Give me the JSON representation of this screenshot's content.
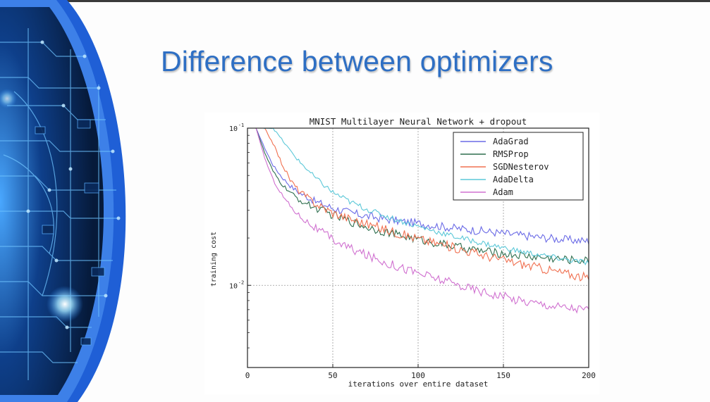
{
  "slide": {
    "title": "Difference between optimizers",
    "accent_color": "#2e6fc4",
    "decoration": "blue-circuit-globe"
  },
  "chart_data": {
    "type": "line",
    "title": "MNIST Multilayer Neural Network + dropout",
    "xlabel": "iterations over entire dataset",
    "ylabel": "training cost",
    "xlim": [
      0,
      200
    ],
    "ylim": [
      0.003,
      0.1
    ],
    "yscale": "log",
    "xticks": [
      "0",
      "50",
      "100",
      "150",
      "200"
    ],
    "yticks": [
      {
        "value": 0.1,
        "base": "10",
        "exp": "-1"
      },
      {
        "value": 0.01,
        "base": "10",
        "exp": "-2"
      }
    ],
    "grid": true,
    "legend_position": "top-right",
    "x": [
      5,
      10,
      15,
      20,
      25,
      30,
      40,
      50,
      60,
      70,
      80,
      90,
      100,
      110,
      120,
      130,
      140,
      150,
      160,
      170,
      180,
      190,
      200
    ],
    "series": [
      {
        "name": "AdaGrad",
        "color": "#6a6ae6",
        "noise": 0.9,
        "values": [
          0.1,
          0.075,
          0.058,
          0.049,
          0.043,
          0.039,
          0.034,
          0.031,
          0.029,
          0.0275,
          0.0265,
          0.0255,
          0.0248,
          0.024,
          0.0232,
          0.0226,
          0.022,
          0.0214,
          0.0208,
          0.0203,
          0.0198,
          0.0194,
          0.0191
        ]
      },
      {
        "name": "RMSProp",
        "color": "#2e6e4e",
        "noise": 0.9,
        "values": [
          0.1,
          0.07,
          0.053,
          0.044,
          0.039,
          0.035,
          0.031,
          0.028,
          0.0255,
          0.0235,
          0.022,
          0.0207,
          0.0196,
          0.0186,
          0.0178,
          0.017,
          0.0164,
          0.0159,
          0.0155,
          0.0151,
          0.0148,
          0.0145,
          0.0143
        ]
      },
      {
        "name": "SGDNesterov",
        "color": "#f07050",
        "noise": 1.0,
        "values": [
          0.1,
          0.1,
          0.08,
          0.06,
          0.047,
          0.04,
          0.033,
          0.029,
          0.0265,
          0.0245,
          0.0228,
          0.0212,
          0.0198,
          0.0186,
          0.0175,
          0.0164,
          0.0154,
          0.0145,
          0.0137,
          0.013,
          0.0123,
          0.0117,
          0.0111
        ]
      },
      {
        "name": "AdaDelta",
        "color": "#5cc8d8",
        "noise": 0.6,
        "values": [
          0.1,
          0.1,
          0.1,
          0.085,
          0.072,
          0.062,
          0.048,
          0.039,
          0.034,
          0.0305,
          0.0278,
          0.0256,
          0.0237,
          0.0221,
          0.0206,
          0.0194,
          0.0183,
          0.0173,
          0.0164,
          0.0157,
          0.015,
          0.0144,
          0.0139
        ]
      },
      {
        "name": "Adam",
        "color": "#d070d0",
        "noise": 1.0,
        "values": [
          0.1,
          0.065,
          0.047,
          0.038,
          0.032,
          0.028,
          0.023,
          0.0195,
          0.0172,
          0.0155,
          0.0141,
          0.013,
          0.012,
          0.0111,
          0.0103,
          0.0096,
          0.009,
          0.0085,
          0.008,
          0.0077,
          0.0074,
          0.0072,
          0.007
        ]
      }
    ]
  }
}
